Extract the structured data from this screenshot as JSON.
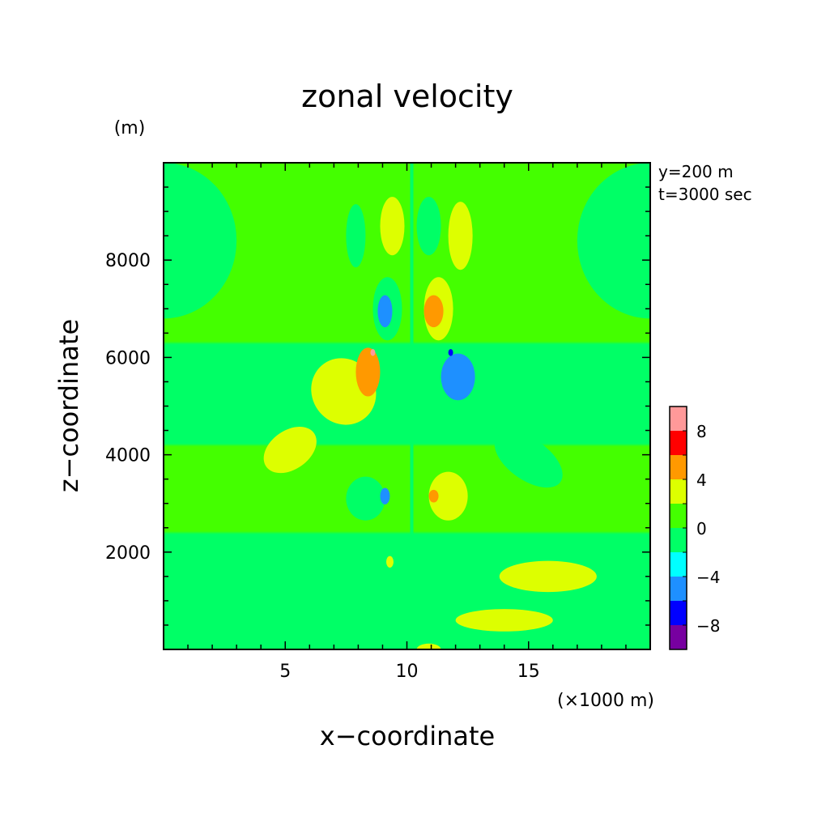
{
  "chart_data": {
    "type": "heatmap",
    "title": "zonal velocity",
    "xlabel": "x−coordinate",
    "ylabel": "z−coordinate",
    "x_units": "(×1000 m)",
    "y_units": "(m)",
    "annotations": [
      "y=200 m",
      "t=3000 sec"
    ],
    "xlim": [
      0,
      20
    ],
    "ylim": [
      0,
      10000
    ],
    "x_ticks": [
      5,
      10,
      15
    ],
    "x_tick_labels": [
      "5",
      "10",
      "15"
    ],
    "y_ticks": [
      2000,
      4000,
      6000,
      8000
    ],
    "y_tick_labels": [
      "2000",
      "4000",
      "6000",
      "8000"
    ],
    "colorbar": {
      "levels": [
        -10,
        -8,
        -6,
        -4,
        -2,
        0,
        2,
        4,
        6,
        8,
        10
      ],
      "tick_labels": [
        "8",
        "4",
        "0",
        "−4",
        "−8"
      ],
      "tick_values": [
        8,
        4,
        0,
        -4,
        -8
      ],
      "colors": [
        "#7700a0",
        "#0000ff",
        "#1e90ff",
        "#00ffff",
        "#00ff66",
        "#44ff00",
        "#ddff00",
        "#ff9900",
        "#ff0000",
        "#ff9999"
      ]
    },
    "background_value": 1,
    "features": [
      {
        "x": 3.2,
        "z": 1500,
        "rx": 2.0,
        "rz": 300,
        "value": -2,
        "shape": "band"
      },
      {
        "x": 5.2,
        "z": 700,
        "rx": 1.5,
        "rz": 250,
        "value": -2,
        "shape": "band"
      },
      {
        "x": 15.8,
        "z": 1500,
        "rx": 2.0,
        "rz": 320,
        "value": 2,
        "shape": "band"
      },
      {
        "x": 14.0,
        "z": 600,
        "rx": 2.0,
        "rz": 230,
        "value": 2,
        "shape": "band"
      },
      {
        "x": 5.2,
        "z": 4100,
        "rx": 1.2,
        "rz": 400,
        "value": 2,
        "shape": "lobe"
      },
      {
        "x": 7.4,
        "z": 5300,
        "rx": 1.3,
        "rz": 700,
        "value": 2,
        "shape": "lobe"
      },
      {
        "x": 15.0,
        "z": 3900,
        "rx": 1.6,
        "rz": 420,
        "value": -2,
        "shape": "lobe"
      },
      {
        "x": 13.1,
        "z": 5200,
        "rx": 1.4,
        "rz": 700,
        "value": -2,
        "shape": "lobe"
      },
      {
        "x": 8.4,
        "z": 5700,
        "rx": 0.5,
        "rz": 500,
        "value": 5,
        "shape": "core"
      },
      {
        "x": 8.6,
        "z": 6100,
        "rx": 0.1,
        "rz": 70,
        "value": 8,
        "shape": "core"
      },
      {
        "x": 12.1,
        "z": 5600,
        "rx": 0.7,
        "rz": 480,
        "value": -5,
        "shape": "core"
      },
      {
        "x": 11.8,
        "z": 6100,
        "rx": 0.1,
        "rz": 70,
        "value": -8,
        "shape": "core"
      },
      {
        "x": 8.3,
        "z": 3100,
        "rx": 0.8,
        "rz": 450,
        "value": -2,
        "shape": "cell"
      },
      {
        "x": 9.1,
        "z": 3150,
        "rx": 0.2,
        "rz": 170,
        "value": -5,
        "shape": "cell"
      },
      {
        "x": 11.7,
        "z": 3150,
        "rx": 0.8,
        "rz": 500,
        "value": 2,
        "shape": "cell"
      },
      {
        "x": 11.1,
        "z": 3150,
        "rx": 0.2,
        "rz": 130,
        "value": 5,
        "shape": "cell"
      },
      {
        "x": 9.2,
        "z": 7000,
        "rx": 0.6,
        "rz": 650,
        "value": -2,
        "shape": "cell"
      },
      {
        "x": 9.1,
        "z": 6950,
        "rx": 0.3,
        "rz": 330,
        "value": -5,
        "shape": "cell"
      },
      {
        "x": 11.3,
        "z": 7000,
        "rx": 0.6,
        "rz": 650,
        "value": 2,
        "shape": "cell"
      },
      {
        "x": 11.1,
        "z": 6950,
        "rx": 0.4,
        "rz": 330,
        "value": 5,
        "shape": "cell"
      },
      {
        "x": 7.9,
        "z": 8500,
        "rx": 0.4,
        "rz": 650,
        "value": -2,
        "shape": "cell"
      },
      {
        "x": 9.4,
        "z": 8700,
        "rx": 0.5,
        "rz": 600,
        "value": 2,
        "shape": "cell"
      },
      {
        "x": 10.9,
        "z": 8700,
        "rx": 0.5,
        "rz": 600,
        "value": -2,
        "shape": "cell"
      },
      {
        "x": 12.2,
        "z": 8500,
        "rx": 0.5,
        "rz": 700,
        "value": 2,
        "shape": "cell"
      },
      {
        "x": 9.3,
        "z": 1800,
        "rx": 0.15,
        "rz": 120,
        "value": 2,
        "shape": "cell"
      },
      {
        "x": 10.9,
        "z": 1800,
        "rx": 0.12,
        "rz": 100,
        "value": -2,
        "shape": "cell"
      },
      {
        "x": 9.4,
        "z": 0,
        "rx": 0.4,
        "rz": 120,
        "value": -2,
        "shape": "cell"
      },
      {
        "x": 10.9,
        "z": 0,
        "rx": 0.5,
        "rz": 120,
        "value": 2,
        "shape": "cell"
      }
    ],
    "near_zero_regions": [
      {
        "z_min": 6800,
        "z_max": 10000,
        "x_edge_width": 6,
        "value": -1
      },
      {
        "z_min": 0,
        "z_max": 2400,
        "x_edge_width": 20,
        "value": -1
      },
      {
        "z_min": 4200,
        "z_max": 6300,
        "x_edge_width": 20,
        "value": -1
      }
    ]
  }
}
